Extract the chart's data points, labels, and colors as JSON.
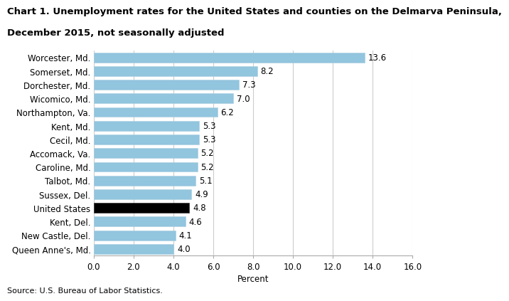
{
  "title_line1": "Chart 1. Unemployment rates for the United States and counties on the Delmarva Peninsula,",
  "title_line2": "December 2015, not seasonally adjusted",
  "categories": [
    "Queen Anne's, Md.",
    "New Castle, Del.",
    "Kent, Del.",
    "United States",
    "Sussex, Del.",
    "Talbot, Md.",
    "Caroline, Md.",
    "Accomack, Va.",
    "Cecil, Md.",
    "Kent, Md.",
    "Northampton, Va.",
    "Wicomico, Md.",
    "Dorchester, Md.",
    "Somerset, Md.",
    "Worcester, Md."
  ],
  "values": [
    4.0,
    4.1,
    4.6,
    4.8,
    4.9,
    5.1,
    5.2,
    5.2,
    5.3,
    5.3,
    6.2,
    7.0,
    7.3,
    8.2,
    13.6
  ],
  "value_labels": [
    "4.0",
    "4.1",
    "4.6",
    "4.8",
    "4.9",
    "5.1",
    "5.2",
    "5.2",
    "5.3",
    "5.3",
    "6.2",
    "7.0",
    "7.3",
    "8.2",
    "13.6"
  ],
  "bar_colors": [
    "#92c5de",
    "#92c5de",
    "#92c5de",
    "#000000",
    "#92c5de",
    "#92c5de",
    "#92c5de",
    "#92c5de",
    "#92c5de",
    "#92c5de",
    "#92c5de",
    "#92c5de",
    "#92c5de",
    "#92c5de",
    "#92c5de"
  ],
  "xlim": [
    0,
    16.0
  ],
  "xticks": [
    0.0,
    2.0,
    4.0,
    6.0,
    8.0,
    10.0,
    12.0,
    14.0,
    16.0
  ],
  "xtick_labels": [
    "0.0",
    "2.0",
    "4.0",
    "6.0",
    "8.0",
    "10.0",
    "12.0",
    "14.0",
    "16.0"
  ],
  "xlabel": "Percent",
  "source": "Source: U.S. Bureau of Labor Statistics.",
  "bar_edge_color": "#a8cfe0",
  "background_color": "#ffffff",
  "grid_color": "#cccccc",
  "title_fontsize": 9.5,
  "label_fontsize": 8.5,
  "tick_fontsize": 8.5,
  "value_fontsize": 8.5,
  "source_fontsize": 8,
  "bar_height": 0.72
}
